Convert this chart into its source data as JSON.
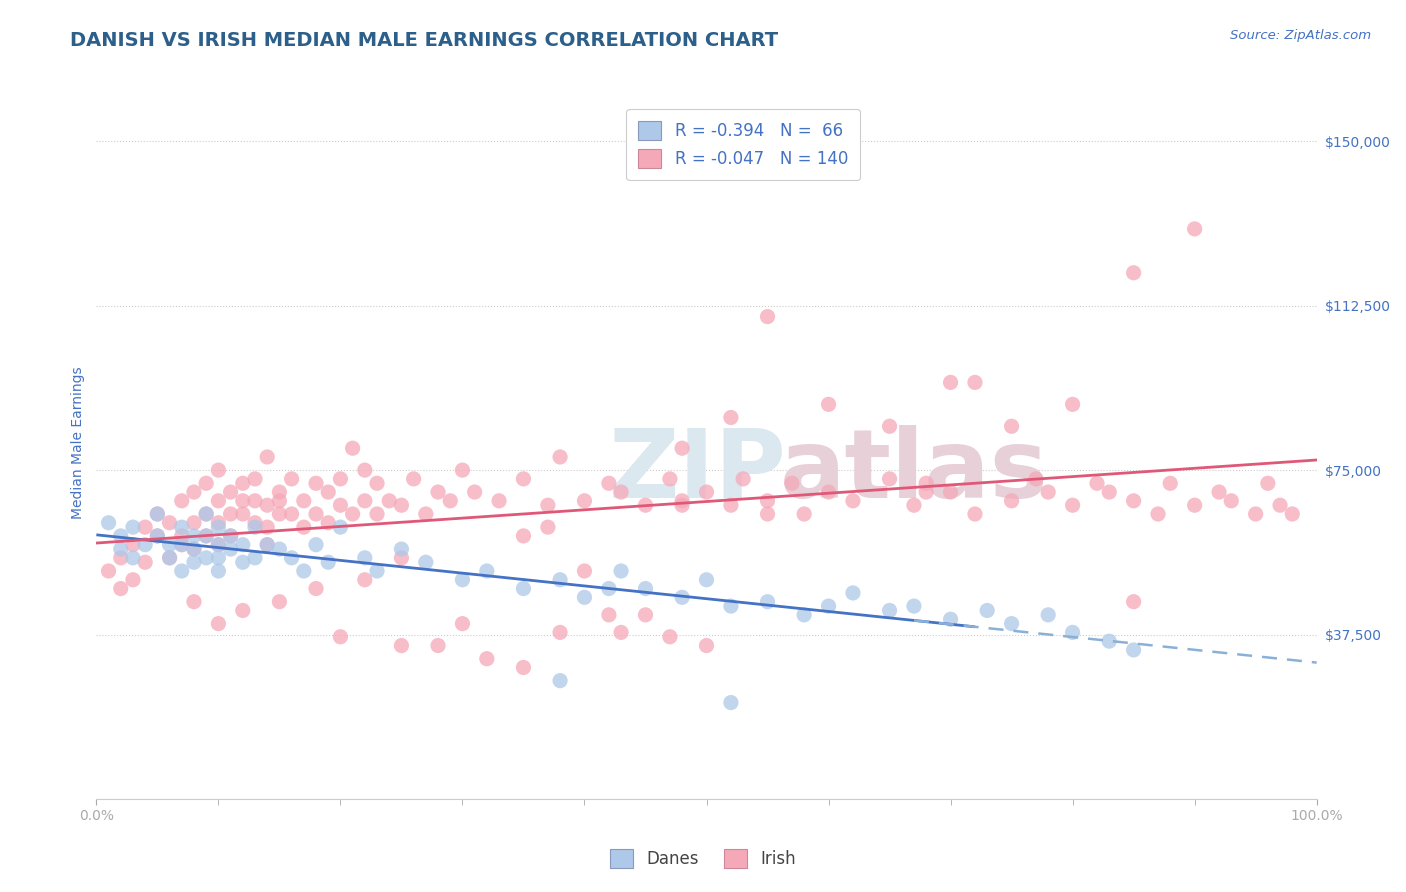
{
  "title": "DANISH VS IRISH MEDIAN MALE EARNINGS CORRELATION CHART",
  "source": "Source: ZipAtlas.com",
  "ylabel": "Median Male Earnings",
  "xlim": [
    0,
    1
  ],
  "ylim": [
    0,
    162500
  ],
  "yticks": [
    0,
    37500,
    75000,
    112500,
    150000
  ],
  "xtick_labels": [
    "0.0%",
    "100.0%"
  ],
  "danes_R": -0.394,
  "danes_N": 66,
  "irish_R": -0.047,
  "irish_N": 140,
  "danes_color": "#adc8e8",
  "irish_color": "#f5a8b8",
  "danes_line_color": "#4472c4",
  "irish_line_color": "#e05878",
  "dashed_line_color": "#8ab0d8",
  "background_color": "#ffffff",
  "grid_color": "#cccccc",
  "text_color": "#4472c4",
  "title_color": "#2c5f8a",
  "legend_box_color_danes": "#adc8e8",
  "legend_box_color_irish": "#f5a8b8",
  "legend_text_color": "#333333",
  "legend_number_color": "#4472c4",
  "watermark_zip_color": "#dce8f0",
  "watermark_atlas_color": "#e8d0d8",
  "danes_x": [
    0.01,
    0.02,
    0.02,
    0.03,
    0.03,
    0.04,
    0.05,
    0.05,
    0.06,
    0.06,
    0.07,
    0.07,
    0.07,
    0.08,
    0.08,
    0.08,
    0.09,
    0.09,
    0.09,
    0.1,
    0.1,
    0.1,
    0.1,
    0.11,
    0.11,
    0.12,
    0.12,
    0.13,
    0.13,
    0.14,
    0.15,
    0.16,
    0.17,
    0.18,
    0.19,
    0.2,
    0.22,
    0.23,
    0.25,
    0.27,
    0.3,
    0.32,
    0.35,
    0.38,
    0.4,
    0.42,
    0.43,
    0.45,
    0.48,
    0.5,
    0.52,
    0.55,
    0.58,
    0.6,
    0.62,
    0.65,
    0.67,
    0.7,
    0.73,
    0.75,
    0.78,
    0.8,
    0.83,
    0.85,
    0.38,
    0.52
  ],
  "danes_y": [
    63000,
    60000,
    57000,
    62000,
    55000,
    58000,
    65000,
    60000,
    58000,
    55000,
    62000,
    58000,
    52000,
    60000,
    57000,
    54000,
    65000,
    60000,
    55000,
    62000,
    58000,
    55000,
    52000,
    60000,
    57000,
    58000,
    54000,
    62000,
    55000,
    58000,
    57000,
    55000,
    52000,
    58000,
    54000,
    62000,
    55000,
    52000,
    57000,
    54000,
    50000,
    52000,
    48000,
    50000,
    46000,
    48000,
    52000,
    48000,
    46000,
    50000,
    44000,
    45000,
    42000,
    44000,
    47000,
    43000,
    44000,
    41000,
    43000,
    40000,
    42000,
    38000,
    36000,
    34000,
    27000,
    22000
  ],
  "irish_x": [
    0.01,
    0.02,
    0.02,
    0.03,
    0.03,
    0.04,
    0.04,
    0.05,
    0.05,
    0.06,
    0.06,
    0.07,
    0.07,
    0.07,
    0.08,
    0.08,
    0.08,
    0.09,
    0.09,
    0.09,
    0.1,
    0.1,
    0.1,
    0.1,
    0.11,
    0.11,
    0.11,
    0.12,
    0.12,
    0.12,
    0.13,
    0.13,
    0.13,
    0.14,
    0.14,
    0.14,
    0.14,
    0.15,
    0.15,
    0.15,
    0.16,
    0.16,
    0.17,
    0.17,
    0.18,
    0.18,
    0.19,
    0.19,
    0.2,
    0.2,
    0.21,
    0.21,
    0.22,
    0.22,
    0.23,
    0.23,
    0.24,
    0.25,
    0.26,
    0.27,
    0.28,
    0.29,
    0.3,
    0.31,
    0.33,
    0.35,
    0.37,
    0.38,
    0.4,
    0.42,
    0.43,
    0.45,
    0.47,
    0.48,
    0.5,
    0.52,
    0.53,
    0.55,
    0.57,
    0.58,
    0.6,
    0.62,
    0.65,
    0.67,
    0.68,
    0.7,
    0.72,
    0.75,
    0.77,
    0.78,
    0.8,
    0.82,
    0.83,
    0.85,
    0.87,
    0.88,
    0.9,
    0.92,
    0.93,
    0.95,
    0.96,
    0.97,
    0.98,
    0.85,
    0.9,
    0.72,
    0.8,
    0.65,
    0.55,
    0.7,
    0.48,
    0.6,
    0.75,
    0.52,
    0.4,
    0.85,
    0.43,
    0.5,
    0.35,
    0.45,
    0.3,
    0.25,
    0.2,
    0.32,
    0.38,
    0.28,
    0.42,
    0.47,
    0.22,
    0.18,
    0.15,
    0.1,
    0.12,
    0.08,
    0.55,
    0.48,
    0.37,
    0.68,
    0.35,
    0.25
  ],
  "irish_y": [
    52000,
    48000,
    55000,
    50000,
    58000,
    62000,
    54000,
    65000,
    60000,
    55000,
    63000,
    60000,
    68000,
    58000,
    63000,
    70000,
    57000,
    65000,
    72000,
    60000,
    68000,
    63000,
    58000,
    75000,
    65000,
    60000,
    70000,
    65000,
    68000,
    72000,
    63000,
    68000,
    73000,
    62000,
    67000,
    78000,
    58000,
    65000,
    70000,
    68000,
    65000,
    73000,
    62000,
    68000,
    65000,
    72000,
    63000,
    70000,
    67000,
    73000,
    65000,
    80000,
    68000,
    75000,
    65000,
    72000,
    68000,
    67000,
    73000,
    65000,
    70000,
    68000,
    75000,
    70000,
    68000,
    73000,
    67000,
    78000,
    68000,
    72000,
    70000,
    67000,
    73000,
    68000,
    70000,
    67000,
    73000,
    68000,
    72000,
    65000,
    70000,
    68000,
    73000,
    67000,
    72000,
    70000,
    65000,
    68000,
    73000,
    70000,
    67000,
    72000,
    70000,
    68000,
    65000,
    72000,
    67000,
    70000,
    68000,
    65000,
    72000,
    67000,
    65000,
    120000,
    130000,
    95000,
    90000,
    85000,
    110000,
    95000,
    80000,
    90000,
    85000,
    87000,
    52000,
    45000,
    38000,
    35000,
    30000,
    42000,
    40000,
    35000,
    37000,
    32000,
    38000,
    35000,
    42000,
    37000,
    50000,
    48000,
    45000,
    40000,
    43000,
    45000,
    65000,
    67000,
    62000,
    70000,
    60000,
    55000
  ]
}
